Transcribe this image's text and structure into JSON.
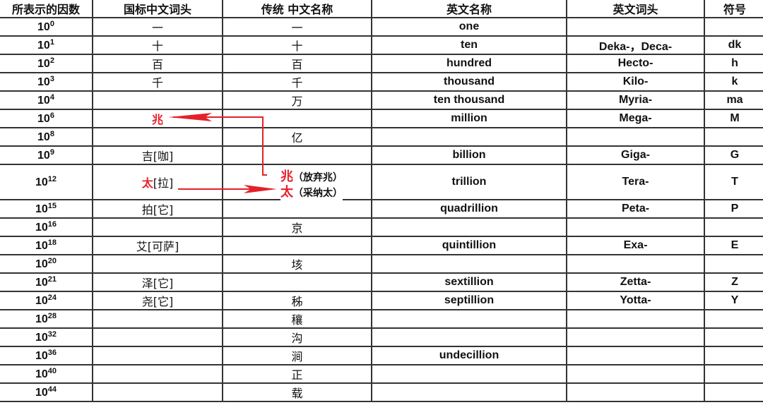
{
  "headers": [
    "所表示的因数",
    "国标中文词头",
    "传统 中文名称",
    "英文名称",
    "英文词头",
    "符号"
  ],
  "rows": [
    {
      "exp": "0",
      "gb": "一",
      "trad": "一",
      "en": "one",
      "prefix": "",
      "sym": ""
    },
    {
      "exp": "1",
      "gb": "十",
      "trad": "十",
      "en": "ten",
      "prefix": "Deka-，Deca-",
      "sym": "dk"
    },
    {
      "exp": "2",
      "gb": "百",
      "trad": "百",
      "en": "hundred",
      "prefix": "Hecto-",
      "sym": "h"
    },
    {
      "exp": "3",
      "gb": "千",
      "trad": "千",
      "en": "thousand",
      "prefix": "Kilo-",
      "sym": "k"
    },
    {
      "exp": "4",
      "gb": "",
      "trad": "万",
      "en": "ten thousand",
      "prefix": "Myria-",
      "sym": "ma"
    },
    {
      "exp": "6",
      "gb": "兆",
      "trad": "",
      "en": "million",
      "prefix": "Mega-",
      "sym": "M"
    },
    {
      "exp": "8",
      "gb": "",
      "trad": "亿",
      "en": "",
      "prefix": "",
      "sym": ""
    },
    {
      "exp": "9",
      "gb": "吉[咖]",
      "trad": "",
      "en": "billion",
      "prefix": "Giga-",
      "sym": "G"
    },
    {
      "exp": "12",
      "gb_red": "太",
      "gb_rest": "[拉]",
      "trad": "",
      "en": "trillion",
      "prefix": "Tera-",
      "sym": "T"
    },
    {
      "exp": "15",
      "gb": "拍[它]",
      "trad": "",
      "en": "quadrillion",
      "prefix": "Peta-",
      "sym": "P"
    },
    {
      "exp": "16",
      "gb": "",
      "trad": "京",
      "en": "",
      "prefix": "",
      "sym": ""
    },
    {
      "exp": "18",
      "gb": "艾[可萨]",
      "trad": "",
      "en": "quintillion",
      "prefix": "Exa-",
      "sym": "E"
    },
    {
      "exp": "20",
      "gb": "",
      "trad": "垓",
      "en": "",
      "prefix": "",
      "sym": ""
    },
    {
      "exp": "21",
      "gb": "泽[它]",
      "trad": "",
      "en": "sextillion",
      "prefix": "Zetta-",
      "sym": "Z"
    },
    {
      "exp": "24",
      "gb": "尧[它]",
      "trad": "秭",
      "en": "septillion",
      "prefix": "Yotta-",
      "sym": "Y"
    },
    {
      "exp": "28",
      "gb": "",
      "trad": "穰",
      "en": "",
      "prefix": "",
      "sym": ""
    },
    {
      "exp": "32",
      "gb": "",
      "trad": "沟",
      "en": "",
      "prefix": "",
      "sym": ""
    },
    {
      "exp": "36",
      "gb": "",
      "trad": "涧",
      "en": "undecillion",
      "prefix": "",
      "sym": ""
    },
    {
      "exp": "40",
      "gb": "",
      "trad": "正",
      "en": "",
      "prefix": "",
      "sym": ""
    },
    {
      "exp": "44",
      "gb": "",
      "trad": "载",
      "en": "",
      "prefix": "",
      "sym": ""
    }
  ],
  "base": "10",
  "annotations": {
    "zhao_mark": "兆",
    "zhao_note": "（放弃兆）",
    "tai_mark": "太",
    "tai_note": "（采纳太）"
  },
  "colors": {
    "accent_red": "#e5202a",
    "grid": "#333333"
  }
}
